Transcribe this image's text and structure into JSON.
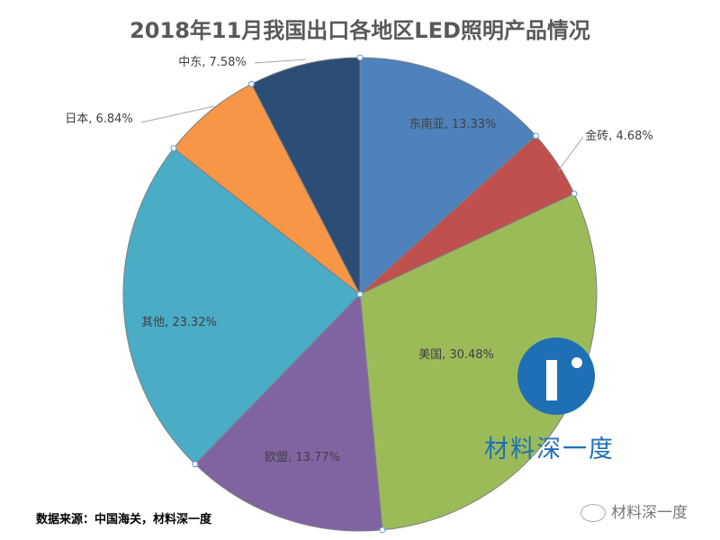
{
  "chart_data": {
    "type": "pie",
    "title": "2018年11月我国出口各地区LED照明产品情况",
    "start": "top",
    "direction": "clockwise",
    "slices": [
      {
        "label": "东南亚",
        "value": 13.33,
        "display": "东南亚, 13.33%",
        "color": "#4f81bd"
      },
      {
        "label": "金砖",
        "value": 4.68,
        "display": "金砖, 4.68%",
        "color": "#c0504d"
      },
      {
        "label": "美国",
        "value": 30.48,
        "display": "美国, 30.48%",
        "color": "#9bbb59"
      },
      {
        "label": "欧盟",
        "value": 13.77,
        "display": "欧盟, 13.77%",
        "color": "#8064a2"
      },
      {
        "label": "其他",
        "value": 23.32,
        "display": "其他, 23.32%",
        "color": "#4bacc6"
      },
      {
        "label": "日本",
        "value": 6.84,
        "display": "日本, 6.84%",
        "color": "#f79646"
      },
      {
        "label": "中东",
        "value": 7.58,
        "display": "中东, 7.58%",
        "color": "#2c4d75"
      }
    ]
  },
  "source": "数据来源：中国海关，材料深一度",
  "watermark": {
    "logo_text": "材料深一度",
    "wechat_text": "材料深一度",
    "color": "#1f6fb5"
  }
}
